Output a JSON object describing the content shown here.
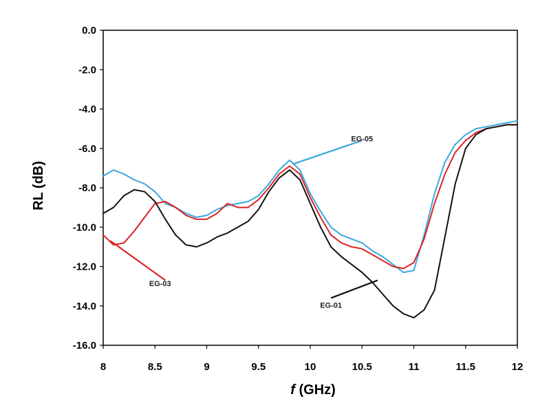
{
  "chart_data": {
    "type": "line",
    "title": "",
    "xlabel_italic": "f",
    "xlabel_rest": " (GHz)",
    "ylabel": "RL (dB)",
    "xlim": [
      8,
      12
    ],
    "ylim": [
      -16,
      0
    ],
    "grid": false,
    "x_ticks": [
      "8",
      "8.5",
      "9",
      "9.5",
      "10",
      "10.5",
      "11",
      "11.5",
      "12"
    ],
    "y_ticks": [
      "0.0",
      "-2.0",
      "-4.0",
      "-6.0",
      "-8.0",
      "-10.0",
      "-12.0",
      "-14.0",
      "-16.0"
    ],
    "series": [
      {
        "name": "EG-05",
        "color": "#3aa6dd",
        "x": [
          8.0,
          8.1,
          8.2,
          8.3,
          8.4,
          8.5,
          8.6,
          8.7,
          8.8,
          8.9,
          9.0,
          9.1,
          9.2,
          9.3,
          9.4,
          9.5,
          9.6,
          9.7,
          9.8,
          9.9,
          10.0,
          10.1,
          10.2,
          10.3,
          10.4,
          10.5,
          10.6,
          10.7,
          10.8,
          10.9,
          11.0,
          11.1,
          11.2,
          11.3,
          11.4,
          11.5,
          11.6,
          11.7,
          11.8,
          11.9,
          12.0
        ],
        "y": [
          -7.4,
          -7.1,
          -7.3,
          -7.6,
          -7.8,
          -8.2,
          -8.8,
          -9.0,
          -9.3,
          -9.5,
          -9.4,
          -9.1,
          -8.9,
          -8.8,
          -8.7,
          -8.4,
          -7.8,
          -7.1,
          -6.6,
          -7.1,
          -8.3,
          -9.2,
          -10.0,
          -10.4,
          -10.6,
          -10.8,
          -11.2,
          -11.5,
          -11.9,
          -12.3,
          -12.2,
          -10.4,
          -8.3,
          -6.7,
          -5.8,
          -5.3,
          -5.0,
          -4.9,
          -4.8,
          -4.7,
          -4.6
        ]
      },
      {
        "name": "EG-03",
        "color": "#dd2222",
        "x": [
          8.0,
          8.1,
          8.2,
          8.3,
          8.4,
          8.5,
          8.6,
          8.7,
          8.8,
          8.9,
          9.0,
          9.1,
          9.2,
          9.3,
          9.4,
          9.5,
          9.6,
          9.7,
          9.8,
          9.9,
          10.0,
          10.1,
          10.2,
          10.3,
          10.4,
          10.5,
          10.6,
          10.7,
          10.8,
          10.9,
          11.0,
          11.1,
          11.2,
          11.3,
          11.4,
          11.5,
          11.6,
          11.7,
          11.8,
          11.9,
          12.0
        ],
        "y": [
          -10.4,
          -10.9,
          -10.8,
          -10.2,
          -9.5,
          -8.8,
          -8.7,
          -9.0,
          -9.4,
          -9.6,
          -9.6,
          -9.3,
          -8.8,
          -9.0,
          -9.0,
          -8.6,
          -8.0,
          -7.3,
          -6.9,
          -7.3,
          -8.5,
          -9.5,
          -10.4,
          -10.8,
          -11.0,
          -11.1,
          -11.4,
          -11.7,
          -12.0,
          -12.1,
          -11.8,
          -10.6,
          -8.8,
          -7.3,
          -6.2,
          -5.6,
          -5.2,
          -5.0,
          -4.9,
          -4.8,
          -4.8
        ]
      },
      {
        "name": "EG-01",
        "color": "#111111",
        "x": [
          8.0,
          8.1,
          8.2,
          8.3,
          8.4,
          8.5,
          8.6,
          8.7,
          8.8,
          8.9,
          9.0,
          9.1,
          9.2,
          9.3,
          9.4,
          9.5,
          9.6,
          9.7,
          9.8,
          9.9,
          10.0,
          10.1,
          10.2,
          10.3,
          10.4,
          10.5,
          10.6,
          10.7,
          10.8,
          10.9,
          11.0,
          11.1,
          11.2,
          11.3,
          11.4,
          11.5,
          11.6,
          11.7,
          11.8,
          11.9,
          12.0
        ],
        "y": [
          -9.3,
          -9.0,
          -8.4,
          -8.1,
          -8.2,
          -8.7,
          -9.6,
          -10.4,
          -10.9,
          -11.0,
          -10.8,
          -10.5,
          -10.3,
          -10.0,
          -9.7,
          -9.1,
          -8.2,
          -7.5,
          -7.1,
          -7.6,
          -8.8,
          -10.0,
          -11.0,
          -11.5,
          -11.9,
          -12.3,
          -12.8,
          -13.4,
          -14.0,
          -14.4,
          -14.6,
          -14.2,
          -13.2,
          -10.5,
          -7.8,
          -6.0,
          -5.3,
          -5.0,
          -4.9,
          -4.8,
          -4.8
        ]
      }
    ],
    "annotations": [
      {
        "label": "EG-05",
        "series_index": 0,
        "point": [
          9.83,
          -6.8
        ],
        "text_at": [
          10.5,
          -5.65
        ],
        "line_end": [
          10.5,
          -5.6
        ]
      },
      {
        "label": "EG-03",
        "series_index": 1,
        "point": [
          8.07,
          -10.7
        ],
        "text_at": [
          8.55,
          -13.0
        ],
        "line_end": [
          8.6,
          -12.7
        ]
      },
      {
        "label": "EG-01",
        "series_index": 2,
        "point": [
          10.65,
          -12.7
        ],
        "text_at": [
          10.2,
          -14.1
        ],
        "line_end": [
          10.2,
          -13.6
        ]
      }
    ]
  }
}
